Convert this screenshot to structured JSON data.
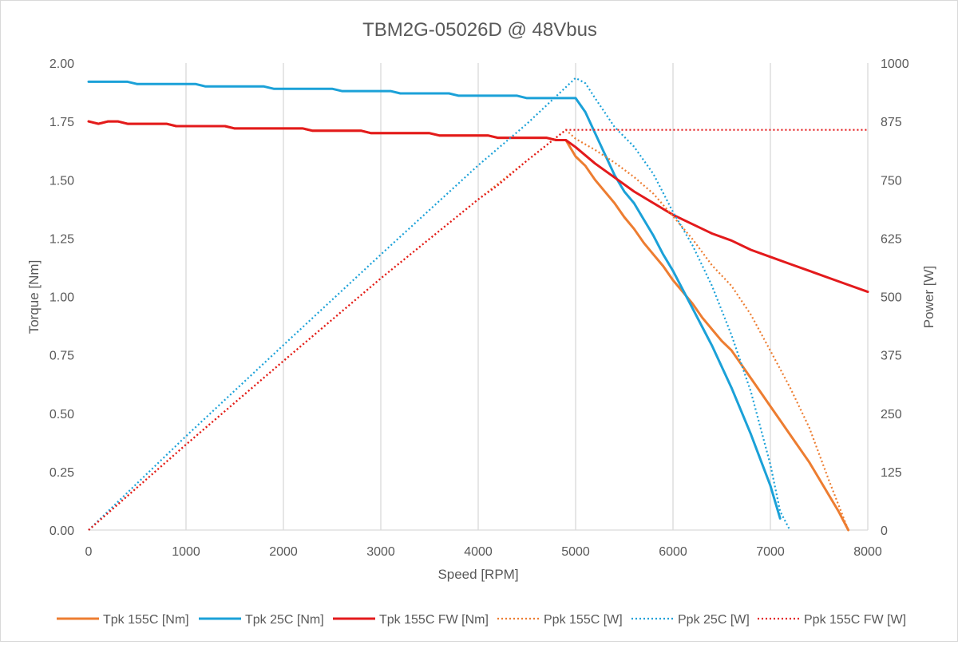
{
  "chart_data": {
    "type": "line",
    "title": "TBM2G-05026D @ 48Vbus",
    "xlabel": "Speed [RPM]",
    "ylabel": "Torque [Nm]",
    "y2label": "Power [W]",
    "xlim": [
      0,
      8000
    ],
    "ylim": [
      0,
      2.0
    ],
    "y2lim": [
      0,
      1000
    ],
    "x_ticks": [
      "0",
      "1000",
      "2000",
      "3000",
      "4000",
      "5000",
      "6000",
      "7000",
      "8000"
    ],
    "y_ticks": [
      "0.00",
      "0.25",
      "0.50",
      "0.75",
      "1.00",
      "1.25",
      "1.50",
      "1.75",
      "2.00"
    ],
    "y2_ticks": [
      "0",
      "125",
      "250",
      "375",
      "500",
      "625",
      "750",
      "875",
      "1000"
    ],
    "grid": "vertical",
    "legend_position": "bottom",
    "colors": {
      "orange": "#ED7D31",
      "blue": "#1BA1D8",
      "red": "#E31A1C",
      "grid": "#d9d9d9"
    },
    "series": [
      {
        "name": "Tpk 155C [Nm]",
        "axis": "left",
        "style": "solid",
        "color": "#ED7D31",
        "points": [
          [
            0,
            1.75
          ],
          [
            100,
            1.74
          ],
          [
            200,
            1.75
          ],
          [
            300,
            1.75
          ],
          [
            400,
            1.74
          ],
          [
            800,
            1.74
          ],
          [
            900,
            1.73
          ],
          [
            1400,
            1.73
          ],
          [
            1500,
            1.72
          ],
          [
            2200,
            1.72
          ],
          [
            2300,
            1.71
          ],
          [
            2800,
            1.71
          ],
          [
            2900,
            1.7
          ],
          [
            3500,
            1.7
          ],
          [
            3600,
            1.69
          ],
          [
            4100,
            1.69
          ],
          [
            4200,
            1.68
          ],
          [
            4700,
            1.68
          ],
          [
            4800,
            1.67
          ],
          [
            4900,
            1.67
          ],
          [
            5000,
            1.6
          ],
          [
            5100,
            1.56
          ],
          [
            5200,
            1.5
          ],
          [
            5300,
            1.45
          ],
          [
            5400,
            1.4
          ],
          [
            5500,
            1.34
          ],
          [
            5600,
            1.29
          ],
          [
            5700,
            1.23
          ],
          [
            5800,
            1.18
          ],
          [
            5900,
            1.13
          ],
          [
            6000,
            1.07
          ],
          [
            6100,
            1.02
          ],
          [
            6200,
            0.97
          ],
          [
            6300,
            0.91
          ],
          [
            6400,
            0.86
          ],
          [
            6500,
            0.81
          ],
          [
            6600,
            0.77
          ],
          [
            6700,
            0.71
          ],
          [
            6800,
            0.65
          ],
          [
            6900,
            0.59
          ],
          [
            7000,
            0.53
          ],
          [
            7100,
            0.47
          ],
          [
            7200,
            0.41
          ],
          [
            7300,
            0.35
          ],
          [
            7400,
            0.29
          ],
          [
            7500,
            0.22
          ],
          [
            7600,
            0.15
          ],
          [
            7700,
            0.08
          ],
          [
            7800,
            0.0
          ]
        ]
      },
      {
        "name": "Tpk 25C [Nm]",
        "axis": "left",
        "style": "solid",
        "color": "#1BA1D8",
        "points": [
          [
            0,
            1.92
          ],
          [
            400,
            1.92
          ],
          [
            500,
            1.91
          ],
          [
            1100,
            1.91
          ],
          [
            1200,
            1.9
          ],
          [
            1800,
            1.9
          ],
          [
            1900,
            1.89
          ],
          [
            2500,
            1.89
          ],
          [
            2600,
            1.88
          ],
          [
            3100,
            1.88
          ],
          [
            3200,
            1.87
          ],
          [
            3700,
            1.87
          ],
          [
            3800,
            1.86
          ],
          [
            4400,
            1.86
          ],
          [
            4500,
            1.85
          ],
          [
            5000,
            1.85
          ],
          [
            5100,
            1.79
          ],
          [
            5200,
            1.7
          ],
          [
            5300,
            1.61
          ],
          [
            5400,
            1.52
          ],
          [
            5500,
            1.45
          ],
          [
            5600,
            1.4
          ],
          [
            5700,
            1.33
          ],
          [
            5800,
            1.26
          ],
          [
            5900,
            1.18
          ],
          [
            6000,
            1.11
          ],
          [
            6100,
            1.03
          ],
          [
            6200,
            0.95
          ],
          [
            6300,
            0.87
          ],
          [
            6400,
            0.79
          ],
          [
            6500,
            0.7
          ],
          [
            6600,
            0.61
          ],
          [
            6700,
            0.51
          ],
          [
            6800,
            0.41
          ],
          [
            6900,
            0.3
          ],
          [
            7000,
            0.19
          ],
          [
            7100,
            0.05
          ]
        ]
      },
      {
        "name": "Tpk 155C FW [Nm]",
        "axis": "left",
        "style": "solid",
        "color": "#E31A1C",
        "points": [
          [
            0,
            1.75
          ],
          [
            100,
            1.74
          ],
          [
            200,
            1.75
          ],
          [
            300,
            1.75
          ],
          [
            400,
            1.74
          ],
          [
            800,
            1.74
          ],
          [
            900,
            1.73
          ],
          [
            1400,
            1.73
          ],
          [
            1500,
            1.72
          ],
          [
            2200,
            1.72
          ],
          [
            2300,
            1.71
          ],
          [
            2800,
            1.71
          ],
          [
            2900,
            1.7
          ],
          [
            3500,
            1.7
          ],
          [
            3600,
            1.69
          ],
          [
            4100,
            1.69
          ],
          [
            4200,
            1.68
          ],
          [
            4700,
            1.68
          ],
          [
            4800,
            1.67
          ],
          [
            4900,
            1.67
          ],
          [
            5000,
            1.64
          ],
          [
            5200,
            1.57
          ],
          [
            5400,
            1.51
          ],
          [
            5600,
            1.45
          ],
          [
            5800,
            1.4
          ],
          [
            6000,
            1.35
          ],
          [
            6200,
            1.31
          ],
          [
            6400,
            1.27
          ],
          [
            6600,
            1.24
          ],
          [
            6800,
            1.2
          ],
          [
            7000,
            1.17
          ],
          [
            7200,
            1.14
          ],
          [
            7400,
            1.11
          ],
          [
            7600,
            1.08
          ],
          [
            7800,
            1.05
          ],
          [
            8000,
            1.02
          ]
        ]
      },
      {
        "name": "Ppk 155C [W]",
        "axis": "right",
        "style": "dotted",
        "color": "#ED7D31",
        "points": [
          [
            0,
            0
          ],
          [
            1000,
            183
          ],
          [
            2000,
            362
          ],
          [
            3000,
            539
          ],
          [
            4000,
            708
          ],
          [
            4500,
            791
          ],
          [
            4900,
            857
          ],
          [
            5000,
            838
          ],
          [
            5200,
            814
          ],
          [
            5400,
            787
          ],
          [
            5600,
            756
          ],
          [
            5800,
            720
          ],
          [
            6000,
            672
          ],
          [
            6200,
            623
          ],
          [
            6400,
            567
          ],
          [
            6600,
            523
          ],
          [
            6800,
            461
          ],
          [
            7000,
            384
          ],
          [
            7200,
            306
          ],
          [
            7400,
            219
          ],
          [
            7600,
            107
          ],
          [
            7800,
            0
          ]
        ]
      },
      {
        "name": "Ppk 25C [W]",
        "axis": "right",
        "style": "dotted",
        "color": "#1BA1D8",
        "points": [
          [
            0,
            0
          ],
          [
            1000,
            201
          ],
          [
            2000,
            396
          ],
          [
            3000,
            590
          ],
          [
            4000,
            781
          ],
          [
            4500,
            870
          ],
          [
            5000,
            968
          ],
          [
            5100,
            957
          ],
          [
            5200,
            925
          ],
          [
            5400,
            863
          ],
          [
            5600,
            821
          ],
          [
            5800,
            762
          ],
          [
            6000,
            681
          ],
          [
            6200,
            610
          ],
          [
            6400,
            523
          ],
          [
            6600,
            418
          ],
          [
            6800,
            296
          ],
          [
            7000,
            140
          ],
          [
            7100,
            40
          ],
          [
            7200,
            0
          ]
        ]
      },
      {
        "name": "Ppk 155C FW [W]",
        "axis": "right",
        "style": "dotted",
        "color": "#E31A1C",
        "points": [
          [
            0,
            0
          ],
          [
            1000,
            183
          ],
          [
            2000,
            362
          ],
          [
            3000,
            539
          ],
          [
            4000,
            708
          ],
          [
            4200,
            738
          ],
          [
            4500,
            791
          ],
          [
            4900,
            857
          ],
          [
            5000,
            857
          ],
          [
            6000,
            857
          ],
          [
            7000,
            857
          ],
          [
            8000,
            857
          ]
        ]
      }
    ]
  }
}
